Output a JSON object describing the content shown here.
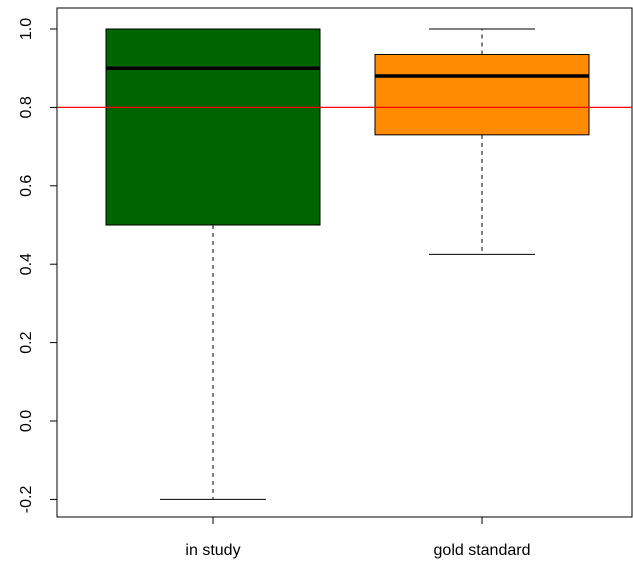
{
  "chart_data": {
    "type": "boxplot",
    "title": "",
    "xlabel": "",
    "ylabel": "",
    "categories": [
      "in study",
      "gold standard"
    ],
    "ylim": [
      -0.25,
      1.05
    ],
    "yticks": [
      -0.2,
      0.0,
      0.2,
      0.4,
      0.6,
      0.8,
      1.0
    ],
    "ytick_labels": [
      "-0.2",
      "0.0",
      "0.2",
      "0.4",
      "0.6",
      "0.8",
      "1.0"
    ],
    "boxes": [
      {
        "category": "in study",
        "whisker_low": -0.2,
        "q1": 0.5,
        "median": 0.9,
        "q3": 1.0,
        "whisker_high": 1.0,
        "color": "#006400"
      },
      {
        "category": "gold standard",
        "whisker_low": 0.425,
        "q1": 0.73,
        "median": 0.88,
        "q3": 0.935,
        "whisker_high": 1.0,
        "color": "#FF8C00"
      }
    ],
    "reference_line": {
      "y": 0.8,
      "color": "#FF0000"
    },
    "grid": false,
    "legend": "none"
  }
}
